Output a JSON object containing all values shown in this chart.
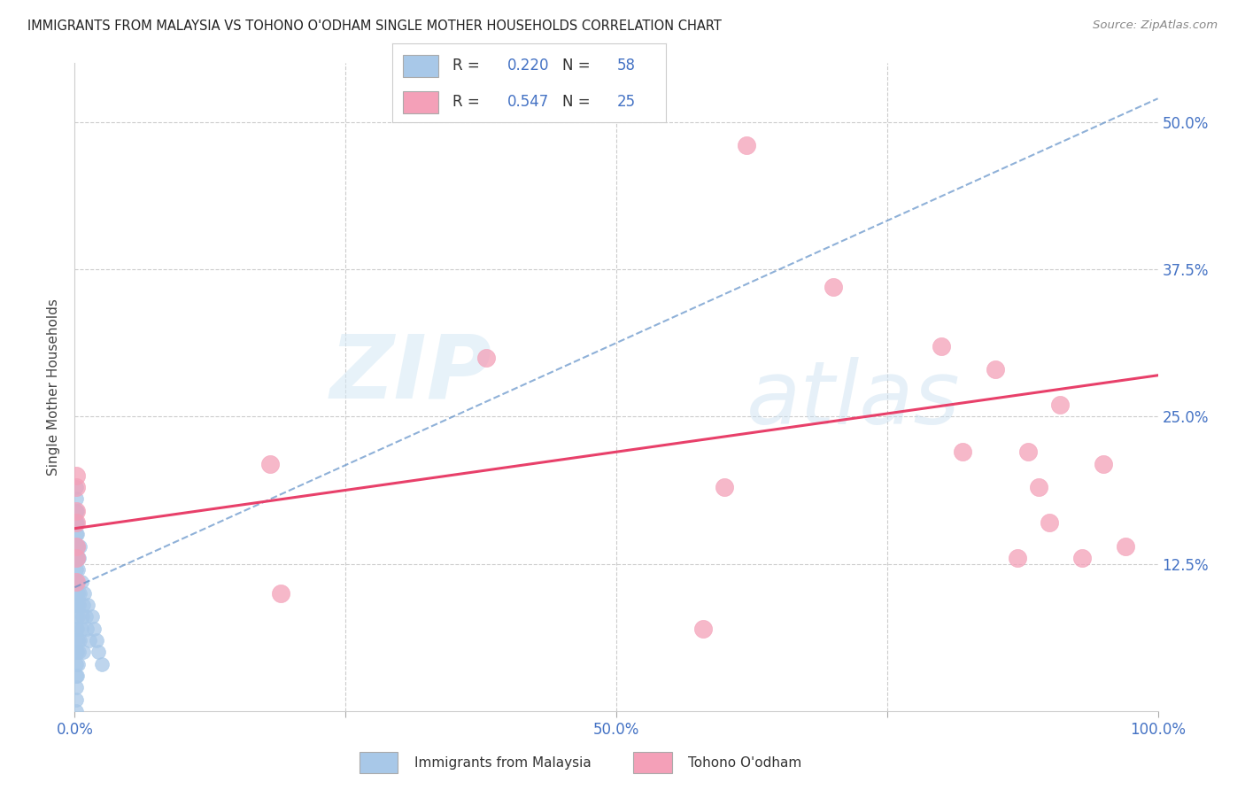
{
  "title": "IMMIGRANTS FROM MALAYSIA VS TOHONO O'ODHAM SINGLE MOTHER HOUSEHOLDS CORRELATION CHART",
  "source": "Source: ZipAtlas.com",
  "xlabel_blue": "Immigrants from Malaysia",
  "xlabel_pink": "Tohono O'odham",
  "ylabel": "Single Mother Households",
  "xlim": [
    0.0,
    1.0
  ],
  "ylim": [
    0.0,
    0.55
  ],
  "blue_R": 0.22,
  "blue_N": 58,
  "pink_R": 0.547,
  "pink_N": 25,
  "blue_color": "#a8c8e8",
  "pink_color": "#f4a0b8",
  "blue_line_color": "#6090c8",
  "pink_line_color": "#e8406a",
  "watermark_zip": "ZIP",
  "watermark_atlas": "atlas",
  "blue_line_x": [
    0.0,
    1.0
  ],
  "blue_line_y": [
    0.105,
    0.52
  ],
  "pink_line_x": [
    0.0,
    1.0
  ],
  "pink_line_y": [
    0.155,
    0.285
  ],
  "blue_scatter_x": [
    0.001,
    0.001,
    0.001,
    0.001,
    0.001,
    0.001,
    0.001,
    0.001,
    0.001,
    0.001,
    0.001,
    0.001,
    0.001,
    0.001,
    0.001,
    0.001,
    0.001,
    0.001,
    0.001,
    0.001,
    0.002,
    0.002,
    0.002,
    0.002,
    0.002,
    0.002,
    0.002,
    0.002,
    0.002,
    0.002,
    0.003,
    0.003,
    0.003,
    0.003,
    0.003,
    0.003,
    0.003,
    0.004,
    0.004,
    0.004,
    0.005,
    0.005,
    0.005,
    0.006,
    0.006,
    0.007,
    0.008,
    0.008,
    0.009,
    0.01,
    0.011,
    0.012,
    0.014,
    0.016,
    0.018,
    0.02,
    0.022,
    0.025
  ],
  "blue_scatter_y": [
    0.0,
    0.01,
    0.02,
    0.03,
    0.04,
    0.05,
    0.06,
    0.07,
    0.08,
    0.09,
    0.1,
    0.11,
    0.12,
    0.13,
    0.14,
    0.15,
    0.16,
    0.17,
    0.18,
    0.19,
    0.03,
    0.05,
    0.07,
    0.09,
    0.11,
    0.13,
    0.14,
    0.15,
    0.16,
    0.17,
    0.04,
    0.06,
    0.08,
    0.1,
    0.12,
    0.13,
    0.14,
    0.05,
    0.09,
    0.13,
    0.06,
    0.1,
    0.14,
    0.07,
    0.11,
    0.08,
    0.05,
    0.09,
    0.1,
    0.08,
    0.07,
    0.09,
    0.06,
    0.08,
    0.07,
    0.06,
    0.05,
    0.04
  ],
  "pink_scatter_x": [
    0.001,
    0.001,
    0.001,
    0.001,
    0.001,
    0.001,
    0.001,
    0.18,
    0.19,
    0.38,
    0.58,
    0.6,
    0.62,
    0.7,
    0.8,
    0.82,
    0.85,
    0.87,
    0.88,
    0.89,
    0.9,
    0.91,
    0.93,
    0.95,
    0.97
  ],
  "pink_scatter_y": [
    0.2,
    0.19,
    0.17,
    0.16,
    0.14,
    0.13,
    0.11,
    0.21,
    0.1,
    0.3,
    0.07,
    0.19,
    0.48,
    0.36,
    0.31,
    0.22,
    0.29,
    0.13,
    0.22,
    0.19,
    0.16,
    0.26,
    0.13,
    0.21,
    0.14
  ]
}
